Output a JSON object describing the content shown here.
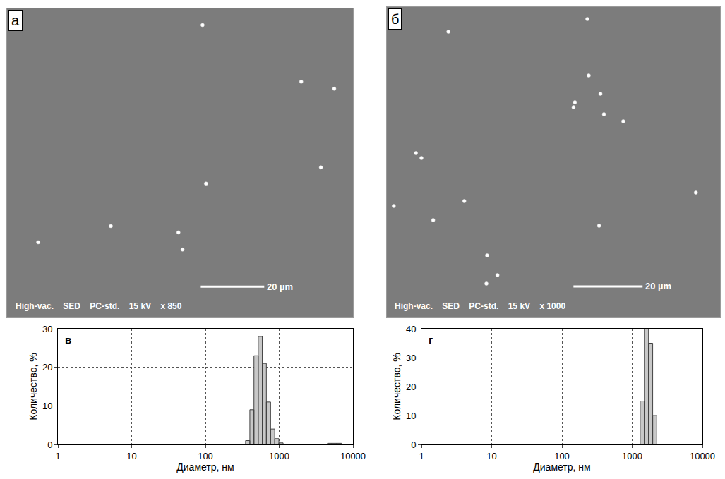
{
  "chart_data": [
    {
      "type": "micrograph",
      "panel": "а",
      "xlim": [
        0,
        109
      ],
      "ylim": [
        0,
        97
      ],
      "tick_labels": false,
      "grid": false,
      "particles": {
        "x": [
          61.6,
          92.7,
          103.1,
          98.9,
          62.7,
          32.7,
          9.8,
          54.0,
          55.3
        ],
        "y": [
          91.8,
          74.0,
          71.8,
          47.1,
          42.0,
          28.7,
          23.6,
          26.7,
          21.3
        ]
      },
      "color": "#ffffff",
      "scale_bar": {
        "length": 20,
        "label": "20 µm"
      },
      "info": [
        "High-vac.",
        "SED",
        "PC-std.",
        "15 kV",
        "x 850"
      ]
    },
    {
      "type": "micrograph",
      "panel": "б",
      "xlim": [
        0,
        96.4
      ],
      "ylim": [
        0,
        88
      ],
      "tick_labels": false,
      "grid": false,
      "particles": {
        "x": [
          17.8,
          58.0,
          58.4,
          54.0,
          54.4,
          61.8,
          62.8,
          68.4,
          61.4,
          10.0,
          8.4,
          13.4,
          22.4,
          2.0,
          29.0,
          32.0,
          28.8,
          89.4
        ],
        "y": [
          81.0,
          84.6,
          68.6,
          59.6,
          61.0,
          63.4,
          57.6,
          55.6,
          26.0,
          45.2,
          46.6,
          27.6,
          33.0,
          31.6,
          17.6,
          12.0,
          9.6,
          35.4
        ]
      },
      "color": "#ffffff",
      "scale_bar": {
        "length": 20,
        "label": "20 µm"
      },
      "info": [
        "High-vac.",
        "SED",
        "PC-std.",
        "15 kV",
        "x 1000"
      ]
    },
    {
      "type": "histogram",
      "panel": "в",
      "x_label": "Диаметр, нм",
      "y_label": "Количество, %",
      "bins": [
        350,
        400,
        455,
        520,
        590,
        670,
        765,
        870,
        990,
        1130,
        4500,
        5200,
        6000,
        7000
      ],
      "counts": [
        1,
        9,
        23,
        28,
        21,
        11,
        4,
        1.5,
        0.4,
        0,
        0.3,
        0.3,
        0.3
      ],
      "color": "#c8c8c8",
      "log": "x",
      "grid": true,
      "xlim": [
        1,
        10000
      ],
      "xticks": [
        1,
        10,
        100,
        1000,
        10000
      ],
      "ylim": [
        0,
        30
      ],
      "yticks": [
        0,
        10,
        20,
        30
      ]
    },
    {
      "type": "histogram",
      "panel": "г",
      "x_label": "Диаметр, нм",
      "y_label": "Количество, %",
      "bins": [
        1300,
        1490,
        1710,
        1960,
        2240
      ],
      "counts": [
        15,
        40,
        35,
        10
      ],
      "color": "#c8c8c8",
      "log": "x",
      "grid": true,
      "xlim": [
        1,
        10000
      ],
      "xticks": [
        1,
        10,
        100,
        1000,
        10000
      ],
      "ylim": [
        0,
        40
      ],
      "yticks": [
        0,
        10,
        20,
        30,
        40
      ]
    }
  ]
}
